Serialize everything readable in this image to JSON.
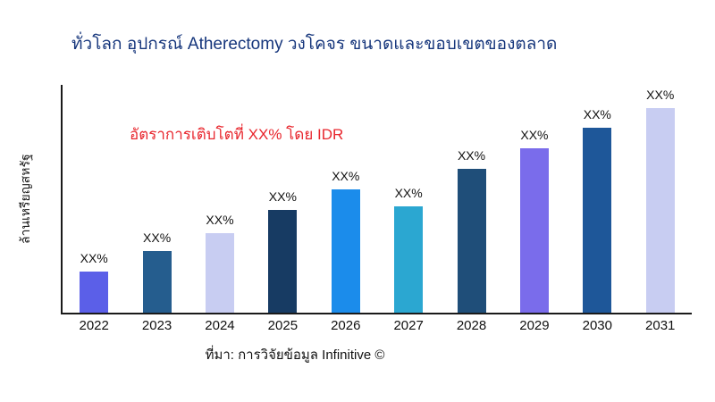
{
  "title": "ทั่วโลก อุปกรณ์ Atherectomy วงโคจร ขนาดและขอบเขตของตลาด",
  "y_axis_label": "ล้านเหรียญสหรัฐ",
  "annotation": {
    "text": "อัตราการเติบโตที่ XX% โดย IDR",
    "color": "#e8262d"
  },
  "source": "ที่มา: การวิจัยข้อมูล Infinitive ©",
  "title_color": "#16367c",
  "chart_data": {
    "type": "bar",
    "title": "ทั่วโลก อุปกรณ์ Atherectomy วงโคจร ขนาดและขอบเขตของตลาด",
    "xlabel": "",
    "ylabel": "ล้านเหรียญสหรัฐ",
    "categories": [
      "2022",
      "2023",
      "2024",
      "2025",
      "2026",
      "2027",
      "2028",
      "2029",
      "2030",
      "2031"
    ],
    "values": [
      20,
      30,
      39,
      50,
      60,
      52,
      70,
      80,
      90,
      100
    ],
    "bar_labels": [
      "XX%",
      "XX%",
      "XX%",
      "XX%",
      "XX%",
      "XX%",
      "XX%",
      "XX%",
      "XX%",
      "XX%"
    ],
    "bar_colors": [
      "#5b5fe8",
      "#255d8e",
      "#c8cdf2",
      "#173b63",
      "#1b8ceb",
      "#2ba7d1",
      "#1f4e79",
      "#7a6ceb",
      "#1e5799",
      "#c8cdf2"
    ],
    "ylim": [
      0,
      100
    ],
    "grid": false,
    "legend": false,
    "annotation": "อัตราการเติบโตที่ XX% โดย IDR"
  }
}
